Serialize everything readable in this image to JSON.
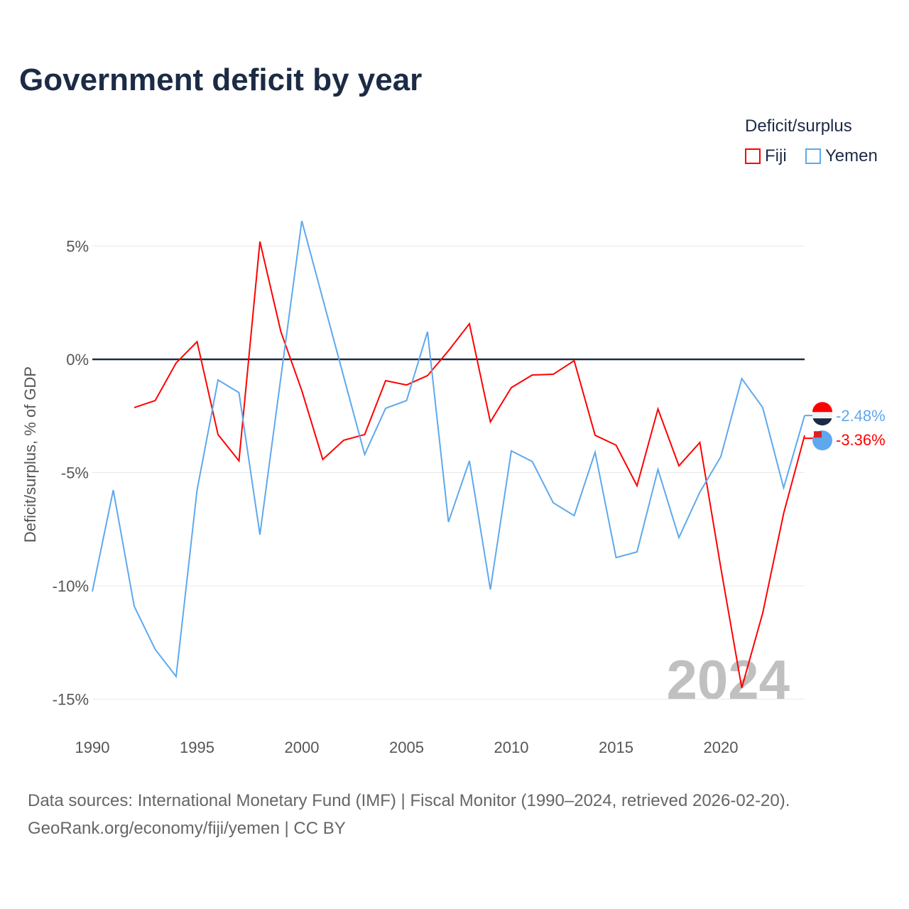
{
  "title": "Government deficit by year",
  "legend": {
    "title": "Deficit/surplus",
    "items": [
      {
        "label": "Fiji",
        "color": "#ff0000"
      },
      {
        "label": "Yemen",
        "color": "#5fa8ee"
      }
    ]
  },
  "source_line1": "Data sources: International Monetary Fund (IMF) | Fiscal Monitor (1990–2024, retrieved 2026-02-20).",
  "source_line2": "GeoRank.org/economy/fiji/yemen | CC BY",
  "chart_data": {
    "type": "line",
    "title": "Government deficit by year",
    "xlabel": "",
    "ylabel": "Deficit/surplus, % of GDP",
    "xlim": [
      1990,
      2024
    ],
    "ylim": [
      -16,
      7
    ],
    "xticks": [
      1990,
      1995,
      2000,
      2005,
      2010,
      2015,
      2020
    ],
    "yticks": [
      {
        "v": 5,
        "label": "5%"
      },
      {
        "v": 0,
        "label": "0%"
      },
      {
        "v": -5,
        "label": "-5%"
      },
      {
        "v": -10,
        "label": "-10%"
      },
      {
        "v": -15,
        "label": "-15%"
      }
    ],
    "watermark": "2024",
    "series": [
      {
        "name": "Fiji",
        "color": "#ff0000",
        "end_label": "-3.36%",
        "x": [
          1992,
          1993,
          1994,
          1995,
          1996,
          1997,
          1998,
          1999,
          2000,
          2001,
          2002,
          2003,
          2004,
          2005,
          2006,
          2007,
          2008,
          2009,
          2010,
          2011,
          2012,
          2013,
          2014,
          2015,
          2016,
          2017,
          2018,
          2019,
          2020,
          2021,
          2022,
          2023,
          2024
        ],
        "values": [
          -2.13,
          -1.82,
          -0.16,
          0.78,
          -3.32,
          -4.48,
          5.2,
          1.22,
          -1.38,
          -4.42,
          -3.57,
          -3.32,
          -0.94,
          -1.13,
          -0.72,
          0.38,
          1.57,
          -2.76,
          -1.25,
          -0.69,
          -0.66,
          -0.06,
          -3.35,
          -3.79,
          -5.58,
          -2.19,
          -4.7,
          -3.67,
          -9.2,
          -14.5,
          -11.2,
          -6.8,
          -3.36
        ]
      },
      {
        "name": "Yemen",
        "color": "#5fa8ee",
        "end_label": "-2.48%",
        "x": [
          1990,
          1991,
          1992,
          1993,
          1994,
          1995,
          1996,
          1997,
          1998,
          1999,
          2000,
          2001,
          2002,
          2003,
          2004,
          2005,
          2006,
          2007,
          2008,
          2009,
          2010,
          2011,
          2012,
          2013,
          2014,
          2015,
          2016,
          2017,
          2018,
          2019,
          2020,
          2021,
          2022,
          2023,
          2024
        ],
        "values": [
          -10.25,
          -5.77,
          -10.9,
          -12.8,
          -14.0,
          -5.77,
          -0.91,
          -1.47,
          -7.74,
          -0.8,
          6.11,
          2.67,
          -0.77,
          -4.2,
          -2.16,
          -1.82,
          1.22,
          -7.18,
          -4.48,
          -10.16,
          -4.04,
          -4.51,
          -6.33,
          -6.9,
          -4.1,
          -8.75,
          -8.5,
          -4.86,
          -7.87,
          -5.86,
          -4.3,
          -0.85,
          -2.13,
          -5.67,
          -2.48
        ]
      }
    ]
  }
}
